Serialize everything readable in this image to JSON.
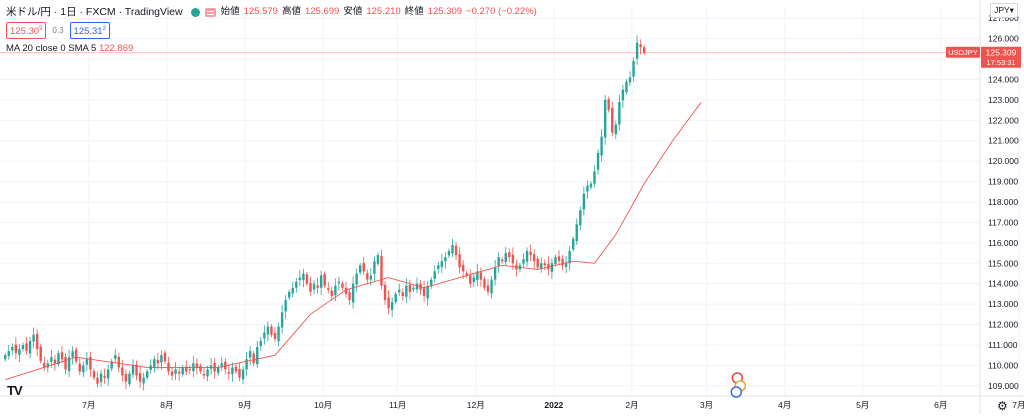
{
  "header": {
    "symbol_line": "米ドル/円 · 1日 · FXCM · TradingView",
    "ohlc": [
      {
        "key": "始値",
        "value": "125.579"
      },
      {
        "key": "高値",
        "value": "125.699"
      },
      {
        "key": "安値",
        "value": "125.210"
      },
      {
        "key": "終値",
        "value": "125.309"
      },
      {
        "key": "",
        "value": "−0.270 (−0.22%)"
      }
    ],
    "sell_price": "125.30",
    "sell_sup": "9",
    "spread": "0.3",
    "buy_price": "125.31",
    "buy_sup": "2",
    "ma_label": "MA 20 close 0 SMA 5",
    "ma_value": "122.869",
    "currency": "JPY",
    "logo": "TV"
  },
  "price_scale": {
    "min": 108.5,
    "max": 127.5,
    "ticks": [
      "127.000",
      "126.000",
      "125.000",
      "124.000",
      "123.000",
      "122.000",
      "121.000",
      "120.000",
      "119.000",
      "118.000",
      "117.000",
      "116.000",
      "115.000",
      "114.000",
      "113.000",
      "112.000",
      "111.000",
      "110.000",
      "109.000"
    ],
    "last_price_label": "125.309",
    "last_price": 125.309,
    "countdown": "17:53:31",
    "symbol_tag": "USDJPY"
  },
  "time_axis": {
    "labels": [
      {
        "text": "7月",
        "bar": 16
      },
      {
        "text": "8月",
        "bar": 38
      },
      {
        "text": "9月",
        "bar": 60
      },
      {
        "text": "10月",
        "bar": 82
      },
      {
        "text": "11月",
        "bar": 103
      },
      {
        "text": "12月",
        "bar": 125
      },
      {
        "text": "2022",
        "bar": 147
      },
      {
        "text": "2月",
        "bar": 169
      },
      {
        "text": "3月",
        "bar": 190
      },
      {
        "text": "4月",
        "bar": 212
      },
      {
        "text": "5月",
        "bar": 234
      },
      {
        "text": "6月",
        "bar": 256
      },
      {
        "text": "7月",
        "bar": 278
      }
    ]
  },
  "colors": {
    "up": "#26a69a",
    "down": "#ef5350",
    "ma": "#ef5350",
    "grid": "#f0f3fa",
    "text": "#131722"
  },
  "chart_data": {
    "type": "candlestick",
    "title": "米ドル/円 1日 FXCM",
    "ylim": [
      108.5,
      127.5
    ],
    "closes": [
      110.5,
      110.7,
      110.9,
      110.6,
      110.8,
      111.0,
      110.7,
      111.2,
      111.5,
      110.8,
      110.2,
      109.9,
      110.1,
      110.4,
      110.1,
      110.6,
      110.3,
      109.8,
      110.4,
      110.7,
      110.2,
      109.7,
      110.0,
      110.3,
      109.8,
      109.4,
      109.1,
      109.6,
      109.4,
      109.8,
      110.2,
      110.5,
      109.9,
      109.5,
      109.2,
      109.6,
      110.0,
      109.5,
      109.2,
      109.4,
      109.7,
      110.0,
      110.3,
      110.1,
      110.5,
      110.2,
      109.7,
      109.5,
      109.8,
      109.6,
      109.9,
      109.7,
      109.8,
      110.1,
      109.9,
      109.7,
      109.5,
      109.8,
      110.0,
      109.7,
      109.9,
      110.1,
      109.8,
      109.6,
      109.9,
      109.7,
      109.4,
      109.8,
      110.3,
      110.7,
      110.1,
      110.9,
      111.2,
      111.6,
      111.9,
      111.5,
      111.3,
      111.9,
      112.6,
      113.2,
      113.6,
      113.8,
      114.1,
      114.3,
      114.5,
      114.0,
      113.6,
      114.0,
      113.8,
      114.4,
      113.9,
      113.7,
      113.4,
      113.9,
      114.1,
      113.8,
      113.5,
      113.2,
      114.0,
      114.5,
      114.9,
      114.6,
      114.2,
      114.4,
      115.1,
      115.4,
      113.9,
      113.2,
      112.8,
      113.1,
      113.5,
      113.7,
      113.4,
      113.9,
      113.6,
      113.8,
      114.0,
      113.7,
      113.4,
      113.9,
      114.2,
      114.6,
      114.9,
      115.1,
      115.3,
      115.6,
      115.9,
      115.4,
      114.8,
      114.6,
      114.4,
      114.0,
      114.3,
      114.6,
      114.2,
      113.8,
      113.6,
      114.2,
      114.8,
      115.3,
      115.1,
      115.5,
      115.3,
      115.0,
      114.7,
      114.9,
      115.2,
      115.6,
      115.4,
      115.1,
      114.8,
      115.0,
      114.9,
      114.7,
      115.0,
      115.3,
      115.1,
      114.9,
      115.0,
      115.6,
      116.2,
      116.9,
      117.6,
      118.4,
      118.8,
      118.9,
      119.5,
      120.4,
      121.2,
      123.0,
      122.5,
      121.4,
      121.8,
      122.9,
      123.5,
      123.9,
      124.1,
      124.9,
      125.8,
      125.58,
      125.309
    ],
    "sma": [
      {
        "bar": 0,
        "value": 109.3
      },
      {
        "bar": 20,
        "value": 110.4
      },
      {
        "bar": 40,
        "value": 109.9
      },
      {
        "bar": 60,
        "value": 109.9
      },
      {
        "bar": 76,
        "value": 110.5
      },
      {
        "bar": 86,
        "value": 112.5
      },
      {
        "bar": 96,
        "value": 113.7
      },
      {
        "bar": 108,
        "value": 114.3
      },
      {
        "bar": 118,
        "value": 113.8
      },
      {
        "bar": 130,
        "value": 114.4
      },
      {
        "bar": 140,
        "value": 114.9
      },
      {
        "bar": 150,
        "value": 114.7
      },
      {
        "bar": 160,
        "value": 115.1
      },
      {
        "bar": 166,
        "value": 115.0
      },
      {
        "bar": 172,
        "value": 116.4
      },
      {
        "bar": 180,
        "value": 118.9
      },
      {
        "bar": 188,
        "value": 121.0
      },
      {
        "bar": 196,
        "value": 122.869
      }
    ]
  }
}
